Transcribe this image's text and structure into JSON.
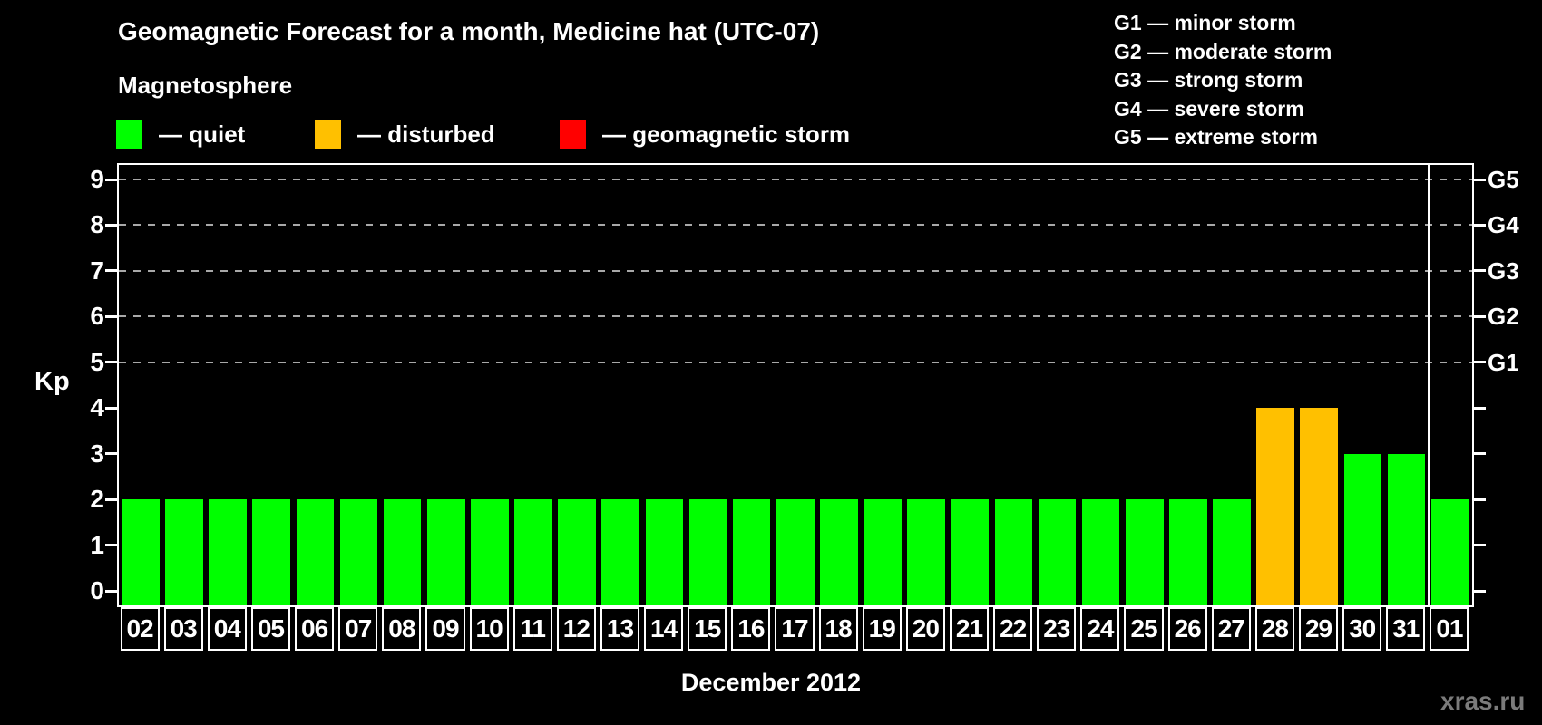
{
  "title": "Geomagnetic Forecast for a month, Medicine hat (UTC-07)",
  "subtitle": "Magnetosphere",
  "legend": {
    "items": [
      {
        "key": "quiet",
        "label": "— quiet",
        "color": "#00FF00"
      },
      {
        "key": "disturbed",
        "label": "— disturbed",
        "color": "#FFC000"
      },
      {
        "key": "storm",
        "label": "— geomagnetic storm",
        "color": "#FF0000"
      }
    ]
  },
  "g_legend": {
    "items": [
      "G1 — minor storm",
      "G2 — moderate storm",
      "G3 — strong storm",
      "G4 — severe storm",
      "G5 — extreme storm"
    ]
  },
  "axis": {
    "y_label": "Kp",
    "y_ticks": [
      "0",
      "1",
      "2",
      "3",
      "4",
      "5",
      "6",
      "7",
      "8",
      "9"
    ],
    "right_labels": [
      {
        "kp": 9,
        "label": "G5"
      },
      {
        "kp": 8,
        "label": "G4"
      },
      {
        "kp": 7,
        "label": "G3"
      },
      {
        "kp": 6,
        "label": "G2"
      },
      {
        "kp": 5,
        "label": "G1"
      }
    ]
  },
  "chart_data": {
    "type": "bar",
    "title": "Geomagnetic Forecast for a month, Medicine hat (UTC-07)",
    "xlabel": "December 2012",
    "ylabel": "Kp",
    "ylim": [
      0,
      9
    ],
    "grid": "dashed horizontal at Kp 5-9",
    "legend_position": "top-left",
    "categories": [
      "02",
      "03",
      "04",
      "05",
      "06",
      "07",
      "08",
      "09",
      "10",
      "11",
      "12",
      "13",
      "14",
      "15",
      "16",
      "17",
      "18",
      "19",
      "20",
      "21",
      "22",
      "23",
      "24",
      "25",
      "26",
      "27",
      "28",
      "29",
      "30",
      "31",
      "01"
    ],
    "values": [
      2,
      2,
      2,
      2,
      2,
      2,
      2,
      2,
      2,
      2,
      2,
      2,
      2,
      2,
      2,
      2,
      2,
      2,
      2,
      2,
      2,
      2,
      2,
      2,
      2,
      2,
      4,
      4,
      3,
      3,
      2
    ],
    "statuses": [
      "quiet",
      "quiet",
      "quiet",
      "quiet",
      "quiet",
      "quiet",
      "quiet",
      "quiet",
      "quiet",
      "quiet",
      "quiet",
      "quiet",
      "quiet",
      "quiet",
      "quiet",
      "quiet",
      "quiet",
      "quiet",
      "quiet",
      "quiet",
      "quiet",
      "quiet",
      "quiet",
      "quiet",
      "quiet",
      "quiet",
      "disturbed",
      "disturbed",
      "quiet",
      "quiet",
      "quiet"
    ],
    "gridlines_kp": [
      5,
      6,
      7,
      8,
      9
    ],
    "separator_index": 30
  },
  "watermark": "xras.ru"
}
